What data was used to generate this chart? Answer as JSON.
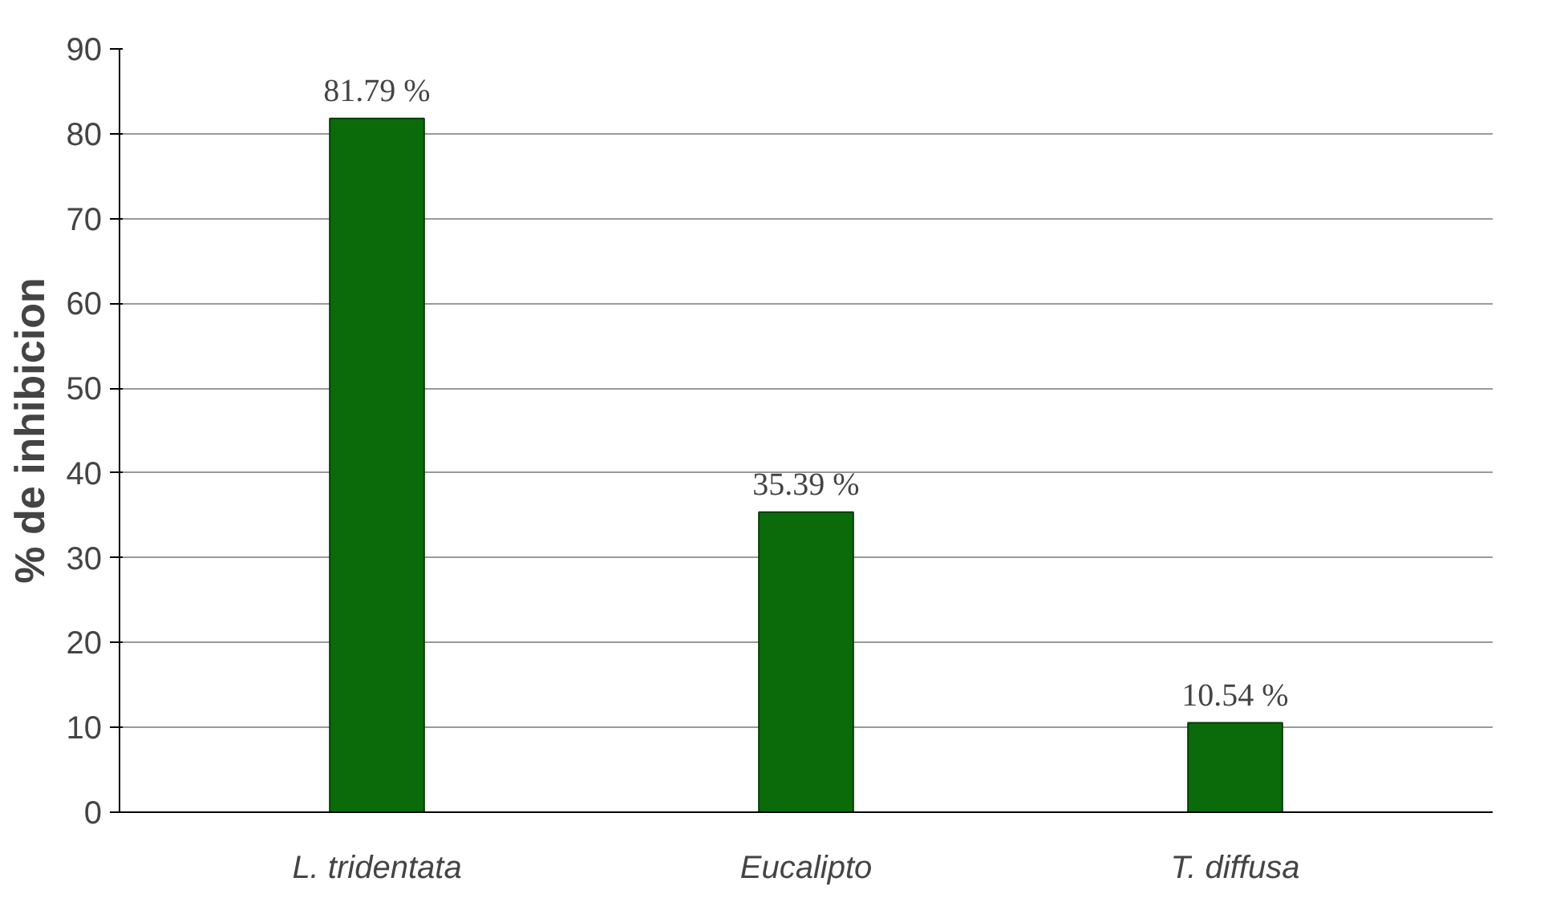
{
  "chart_data": {
    "type": "bar",
    "ylabel": "% de inhibicion",
    "categories": [
      "L. tridentata",
      "Eucalipto",
      "T. diffusa"
    ],
    "values": [
      81.79,
      35.39,
      10.54
    ],
    "value_labels": [
      "81.79 %",
      "35.39 %",
      "10.54 %"
    ],
    "color": "#0b6b0b",
    "ylim": [
      0,
      90
    ],
    "yticks": [
      0,
      10,
      20,
      30,
      40,
      50,
      60,
      70,
      80,
      90
    ],
    "grid": "y"
  }
}
